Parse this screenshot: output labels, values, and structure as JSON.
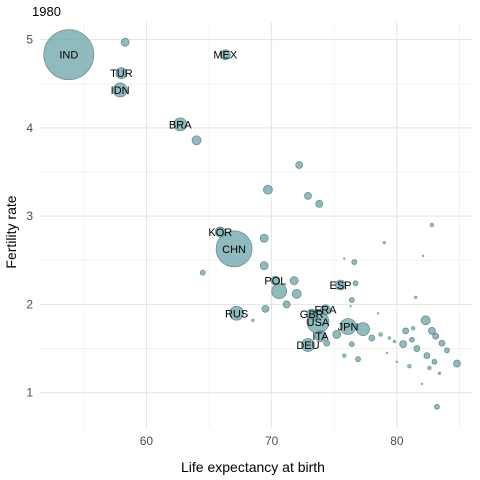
{
  "chart_data": {
    "type": "scatter",
    "title": "1980",
    "xlabel": "Life expectancy at birth",
    "ylabel": "Fertility rate",
    "xlim": [
      51.5,
      86
    ],
    "ylim": [
      0.6,
      5.2
    ],
    "x_ticks": [
      60,
      70,
      80
    ],
    "y_ticks": [
      1,
      2,
      3,
      4,
      5
    ],
    "grid": true,
    "colors": {
      "fill": "#5f9ea4",
      "stroke": "#4a6f72",
      "small": "#2f7f86"
    },
    "points": [
      {
        "label": "IND",
        "x": 53.8,
        "y": 4.83,
        "size": 50
      },
      {
        "label": "",
        "x": 58.3,
        "y": 4.97,
        "size": 8
      },
      {
        "label": "MEX",
        "x": 66.3,
        "y": 4.83,
        "size": 10
      },
      {
        "label": "TUR",
        "x": 58.0,
        "y": 4.62,
        "size": 11
      },
      {
        "label": "IDN",
        "x": 57.9,
        "y": 4.43,
        "size": 14
      },
      {
        "label": "BRA",
        "x": 62.7,
        "y": 4.04,
        "size": 13
      },
      {
        "label": "",
        "x": 64.0,
        "y": 3.86,
        "size": 9
      },
      {
        "label": "",
        "x": 72.2,
        "y": 3.58,
        "size": 7
      },
      {
        "label": "",
        "x": 69.7,
        "y": 3.3,
        "size": 9
      },
      {
        "label": "",
        "x": 72.9,
        "y": 3.23,
        "size": 7
      },
      {
        "label": "",
        "x": 73.8,
        "y": 3.14,
        "size": 7
      },
      {
        "label": "",
        "x": 82.8,
        "y": 2.9,
        "size": 4
      },
      {
        "label": "KOR",
        "x": 65.9,
        "y": 2.82,
        "size": 10
      },
      {
        "label": "",
        "x": 69.4,
        "y": 2.75,
        "size": 8
      },
      {
        "label": "CHN",
        "x": 67.0,
        "y": 2.63,
        "size": 36
      },
      {
        "label": "",
        "x": 79.0,
        "y": 2.7,
        "size": 3
      },
      {
        "label": "",
        "x": 76.6,
        "y": 2.48,
        "size": 5
      },
      {
        "label": "",
        "x": 69.4,
        "y": 2.44,
        "size": 8
      },
      {
        "label": "",
        "x": 64.5,
        "y": 2.36,
        "size": 5
      },
      {
        "label": "POL",
        "x": 70.3,
        "y": 2.27,
        "size": 9
      },
      {
        "label": "",
        "x": 71.8,
        "y": 2.27,
        "size": 8
      },
      {
        "label": "",
        "x": 70.6,
        "y": 2.15,
        "size": 15
      },
      {
        "label": "",
        "x": 72.0,
        "y": 2.12,
        "size": 9
      },
      {
        "label": "",
        "x": 76.7,
        "y": 2.24,
        "size": 5
      },
      {
        "label": "ESP",
        "x": 75.5,
        "y": 2.22,
        "size": 10
      },
      {
        "label": "",
        "x": 76.4,
        "y": 2.05,
        "size": 5
      },
      {
        "label": "",
        "x": 81.5,
        "y": 2.08,
        "size": 3
      },
      {
        "label": "",
        "x": 71.2,
        "y": 2.0,
        "size": 7
      },
      {
        "label": "",
        "x": 69.5,
        "y": 1.95,
        "size": 7
      },
      {
        "label": "RUS",
        "x": 67.2,
        "y": 1.9,
        "size": 14
      },
      {
        "label": "FRA",
        "x": 74.3,
        "y": 1.94,
        "size": 10
      },
      {
        "label": "GBR",
        "x": 73.2,
        "y": 1.89,
        "size": 10
      },
      {
        "label": "USA",
        "x": 73.7,
        "y": 1.8,
        "size": 22
      },
      {
        "label": "",
        "x": 68.5,
        "y": 1.82,
        "size": 3
      },
      {
        "label": "JPN",
        "x": 76.1,
        "y": 1.75,
        "size": 16
      },
      {
        "label": "",
        "x": 77.3,
        "y": 1.72,
        "size": 13
      },
      {
        "label": "",
        "x": 75.2,
        "y": 1.66,
        "size": 8
      },
      {
        "label": "ITA",
        "x": 73.9,
        "y": 1.64,
        "size": 11
      },
      {
        "label": "",
        "x": 78.0,
        "y": 1.62,
        "size": 6
      },
      {
        "label": "",
        "x": 78.7,
        "y": 1.66,
        "size": 4
      },
      {
        "label": "",
        "x": 79.4,
        "y": 1.62,
        "size": 3
      },
      {
        "label": "DEU",
        "x": 72.9,
        "y": 1.54,
        "size": 13
      },
      {
        "label": "",
        "x": 74.4,
        "y": 1.56,
        "size": 6
      },
      {
        "label": "",
        "x": 76.4,
        "y": 1.55,
        "size": 5
      },
      {
        "label": "",
        "x": 75.8,
        "y": 1.42,
        "size": 4
      },
      {
        "label": "",
        "x": 76.9,
        "y": 1.38,
        "size": 5
      },
      {
        "label": "",
        "x": 80.7,
        "y": 1.7,
        "size": 6
      },
      {
        "label": "",
        "x": 81.2,
        "y": 1.6,
        "size": 5
      },
      {
        "label": "",
        "x": 82.3,
        "y": 1.82,
        "size": 9
      },
      {
        "label": "",
        "x": 82.8,
        "y": 1.7,
        "size": 7
      },
      {
        "label": "",
        "x": 83.1,
        "y": 1.64,
        "size": 6
      },
      {
        "label": "",
        "x": 80.5,
        "y": 1.55,
        "size": 7
      },
      {
        "label": "",
        "x": 81.6,
        "y": 1.5,
        "size": 6
      },
      {
        "label": "",
        "x": 82.4,
        "y": 1.42,
        "size": 6
      },
      {
        "label": "",
        "x": 83.6,
        "y": 1.56,
        "size": 6
      },
      {
        "label": "",
        "x": 84.0,
        "y": 1.48,
        "size": 5
      },
      {
        "label": "",
        "x": 83.0,
        "y": 1.35,
        "size": 5
      },
      {
        "label": "",
        "x": 84.8,
        "y": 1.33,
        "size": 7
      },
      {
        "label": "",
        "x": 81.0,
        "y": 1.3,
        "size": 4
      },
      {
        "label": "",
        "x": 82.6,
        "y": 1.28,
        "size": 4
      },
      {
        "label": "",
        "x": 83.4,
        "y": 1.22,
        "size": 3
      },
      {
        "label": "",
        "x": 81.3,
        "y": 1.73,
        "size": 4
      },
      {
        "label": "",
        "x": 83.2,
        "y": 0.84,
        "size": 5
      },
      {
        "label": "",
        "x": 76.3,
        "y": 1.98,
        "size": 2
      },
      {
        "label": "",
        "x": 78.5,
        "y": 1.9,
        "size": 2
      },
      {
        "label": "",
        "x": 79.2,
        "y": 1.45,
        "size": 2
      },
      {
        "label": "",
        "x": 79.8,
        "y": 1.58,
        "size": 3
      },
      {
        "label": "",
        "x": 80.0,
        "y": 1.35,
        "size": 2
      },
      {
        "label": "",
        "x": 82.1,
        "y": 2.55,
        "size": 2
      },
      {
        "label": "",
        "x": 75.8,
        "y": 2.52,
        "size": 2
      },
      {
        "label": "",
        "x": 82.0,
        "y": 1.1,
        "size": 2
      }
    ]
  }
}
